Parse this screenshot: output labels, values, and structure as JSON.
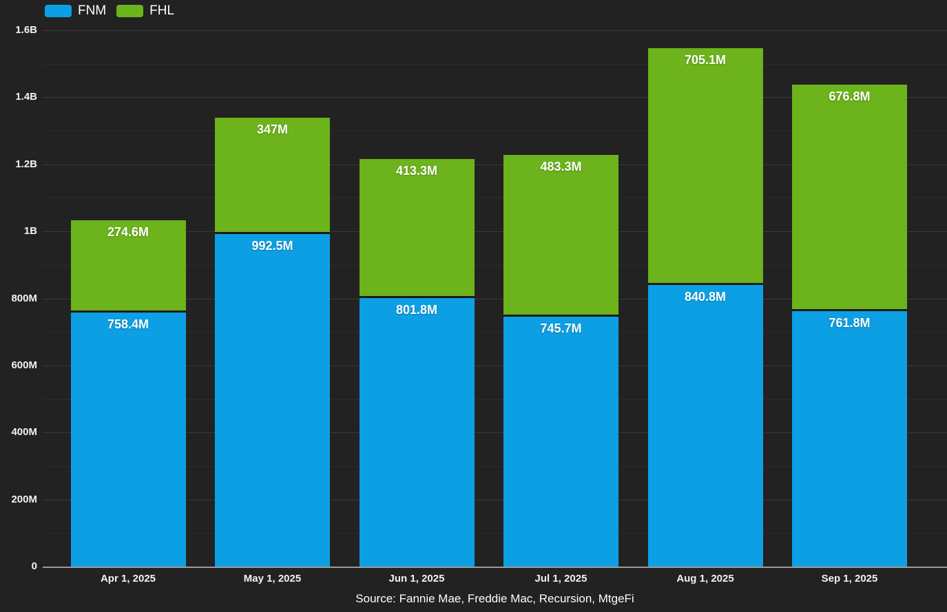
{
  "page": {
    "background": "#222222",
    "source_note": "Source: Fannie Mae, Freddie Mac, Recursion, MtgeFi"
  },
  "legend": {
    "position": "top-left",
    "items": [
      {
        "label": "FNM",
        "color": "#0d9fe4"
      },
      {
        "label": "FHL",
        "color": "#6cb31c"
      }
    ]
  },
  "chart_data": {
    "type": "bar",
    "stacked": true,
    "title": "",
    "xlabel": "",
    "ylabel": "",
    "grid": true,
    "legend_position": "top-left",
    "categories": [
      "Apr 1, 2025",
      "May 1, 2025",
      "Jun 1, 2025",
      "Jul 1, 2025",
      "Aug 1, 2025",
      "Sep 1, 2025"
    ],
    "series": [
      {
        "name": "FNM",
        "color": "#0d9fe4",
        "values_millions": [
          758.4,
          992.5,
          801.8,
          745.7,
          840.8,
          761.8
        ],
        "labels": [
          "758.4M",
          "992.5M",
          "801.8M",
          "745.7M",
          "840.8M",
          "761.8M"
        ]
      },
      {
        "name": "FHL",
        "color": "#6cb31c",
        "values_millions": [
          274.6,
          347,
          413.3,
          483.3,
          705.1,
          676.8
        ],
        "labels": [
          "274.6M",
          "347M",
          "413.3M",
          "483.3M",
          "705.1M",
          "676.8M"
        ]
      }
    ],
    "stack_totals_millions": [
      1033.0,
      1339.5,
      1215.1,
      1229.0,
      1545.9,
      1438.6
    ],
    "ylim_millions": [
      0,
      1600
    ],
    "y_grid_step_millions": 100,
    "y_tick_step_millions": 200,
    "y_tick_labels": [
      "0",
      "200M",
      "400M",
      "600M",
      "800M",
      "1B",
      "1.2B",
      "1.4B",
      "1.6B"
    ]
  }
}
